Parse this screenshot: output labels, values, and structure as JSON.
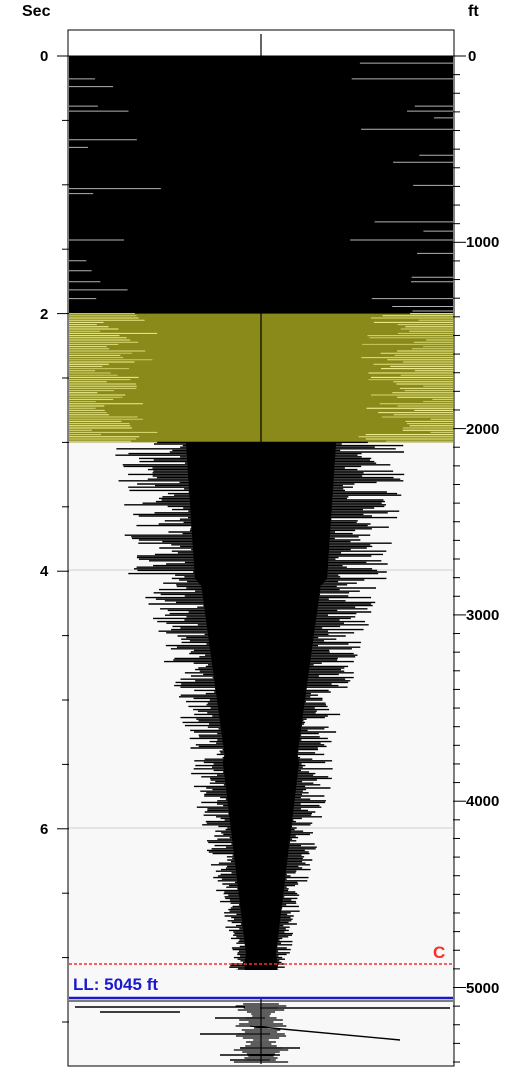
{
  "chart_data": {
    "type": "area",
    "left_axis": {
      "title": "Sec",
      "unit": "s",
      "range": [
        0,
        7.6
      ],
      "labeled_ticks": [
        "0",
        "2",
        "4",
        "6"
      ]
    },
    "right_axis": {
      "title": "ft",
      "range": [
        0,
        5450
      ],
      "labeled_ticks": [
        "0",
        "1000",
        "2000",
        "3000",
        "4000",
        "5000"
      ]
    },
    "highlight_band": {
      "from_sec": 2.0,
      "to_sec": 3.0,
      "color": "#8a8a1a",
      "bright_color": "#fbfb9e"
    },
    "reference_lines": [
      {
        "id": "c-line",
        "label": "C",
        "depth_ft": 4880,
        "color": "#ff2a2a",
        "style": "dashed"
      },
      {
        "id": "ll-line",
        "label": "LL: 5045 ft",
        "depth_ft": 5045,
        "color": "#1a1acc",
        "style": "solid"
      }
    ],
    "grid_lines_sec": [
      4,
      6
    ],
    "grid": true,
    "colors": {
      "trace": "#000000",
      "background": "#f8f8f8",
      "top_band": "#000000"
    }
  }
}
